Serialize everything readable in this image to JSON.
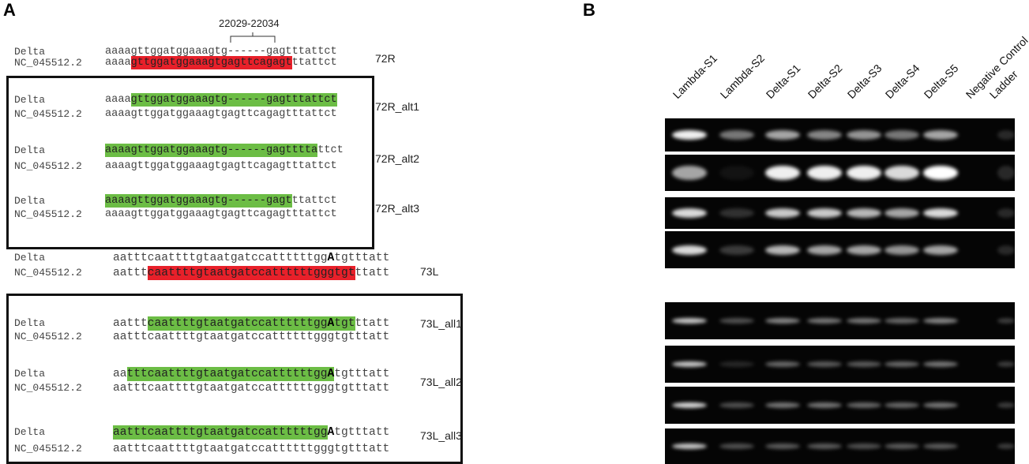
{
  "panel_a": {
    "label": "A",
    "range_label": "22029-22034",
    "colors": {
      "red": "#e8202a",
      "green": "#6cbd45"
    },
    "alignments": [
      {
        "tag": "72R",
        "rows": [
          {
            "name": "Delta",
            "segments": [
              {
                "text": "aaaagttggatggaaagtg------gagtttattct"
              }
            ]
          },
          {
            "name": "NC_045512.2",
            "segments": [
              {
                "text": "aaaa"
              },
              {
                "text": "gttggatggaaagtgagttcagagt",
                "mark": "red"
              },
              {
                "text": "ttattct"
              }
            ]
          }
        ]
      },
      {
        "tag": "72R_alt1",
        "rows": [
          {
            "name": "Delta",
            "segments": [
              {
                "text": "aaaa"
              },
              {
                "text": "gttggatggaaagtg------gagtttattct",
                "mark": "green"
              }
            ]
          },
          {
            "name": "NC_045512.2",
            "segments": [
              {
                "text": "aaaagttggatggaaagtgagttcagagtttattct"
              }
            ]
          }
        ]
      },
      {
        "tag": "72R_alt2",
        "rows": [
          {
            "name": "Delta",
            "segments": [
              {
                "text": "aaaagttggatggaaagtg------gagtttta",
                "mark": "green"
              },
              {
                "text": "ttct"
              }
            ]
          },
          {
            "name": "NC_045512.2",
            "segments": [
              {
                "text": "aaaagttggatggaaagtgagttcagagtttattct"
              }
            ]
          }
        ]
      },
      {
        "tag": "72R_alt3",
        "rows": [
          {
            "name": "Delta",
            "segments": [
              {
                "text": "aaaagttggatggaaagtg------gagt",
                "mark": "green"
              },
              {
                "text": "ttattct"
              }
            ]
          },
          {
            "name": "NC_045512.2",
            "segments": [
              {
                "text": "aaaagttggatggaaagtgagttcagagtttattct"
              }
            ]
          }
        ]
      },
      {
        "tag": "73L",
        "rows": [
          {
            "name": "Delta",
            "segments": [
              {
                "text": "aatttcaattttgtaatgatccattttttgg"
              },
              {
                "text": "A",
                "bold": true
              },
              {
                "text": "tgtttatt"
              }
            ]
          },
          {
            "name": "NC_045512.2",
            "segments": [
              {
                "text": "aattt"
              },
              {
                "text": "caattttgtaatgatccattttttgggtgt",
                "mark": "red"
              },
              {
                "text": "ttatt"
              }
            ]
          }
        ]
      },
      {
        "tag": "73L_all1",
        "rows": [
          {
            "name": "Delta",
            "segments": [
              {
                "text": "aattt"
              },
              {
                "text": "caattttgtaatgatccattttttgg",
                "mark": "green"
              },
              {
                "text": "A",
                "mark": "green",
                "bold": true
              },
              {
                "text": "tgt",
                "mark": "green"
              },
              {
                "text": "ttatt"
              }
            ]
          },
          {
            "name": "NC_045512.2",
            "segments": [
              {
                "text": "aatttcaattttgtaatgatccattttttgggtgtttatt"
              }
            ]
          }
        ]
      },
      {
        "tag": "73L_all2",
        "rows": [
          {
            "name": "Delta",
            "segments": [
              {
                "text": "aa"
              },
              {
                "text": "tttcaattttgtaatgatccattttttgg",
                "mark": "green"
              },
              {
                "text": "A",
                "mark": "green",
                "bold": true
              },
              {
                "text": "tgtttatt"
              }
            ]
          },
          {
            "name": "NC_045512.2",
            "segments": [
              {
                "text": "aatttcaattttgtaatgatccattttttgggtgtttatt"
              }
            ]
          }
        ]
      },
      {
        "tag": "73L_all3",
        "rows": [
          {
            "name": "Delta",
            "segments": [
              {
                "text": "aatttcaattttgtaatgatccattttttgg",
                "mark": "green"
              },
              {
                "text": "A",
                "bold": true
              },
              {
                "text": "tgtttatt"
              }
            ]
          },
          {
            "name": "NC_045512.2",
            "segments": [
              {
                "text": "aatttcaattttgtaatgatccattttttgggtgtttatt"
              }
            ]
          }
        ]
      }
    ]
  },
  "panel_b": {
    "label": "B",
    "lanes": [
      "Lambda-S1",
      "Lambda-S2",
      "Delta-S1",
      "Delta-S2",
      "Delta-S3",
      "Delta-S4",
      "Delta-S5",
      "Negative Control",
      "Ladder"
    ]
  }
}
